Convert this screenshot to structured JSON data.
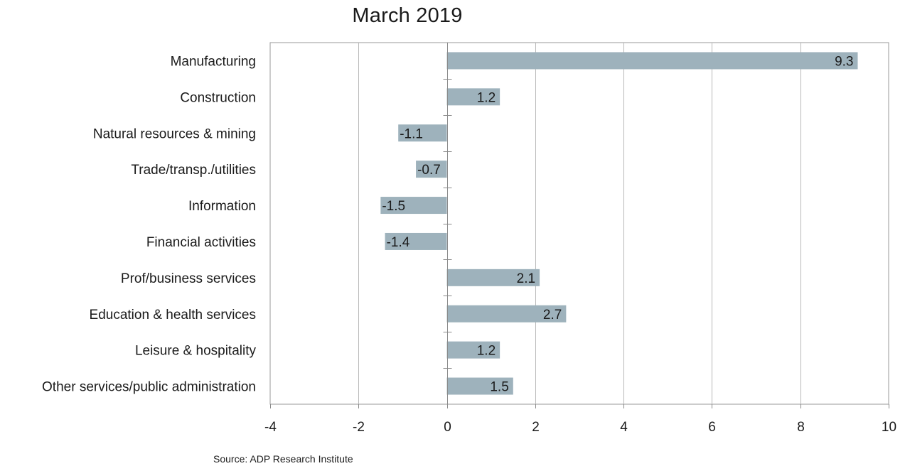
{
  "chart_data": {
    "type": "bar",
    "orientation": "horizontal",
    "title": "March 2019",
    "categories": [
      "Manufacturing",
      "Construction",
      "Natural resources & mining",
      "Trade/transp./utilities",
      "Information",
      "Financial activities",
      "Prof/business services",
      "Education & health services",
      "Leisure & hospitality",
      "Other services/public administration"
    ],
    "values": [
      9.3,
      1.2,
      -1.1,
      -0.7,
      -1.5,
      -1.4,
      2.1,
      2.7,
      1.2,
      1.5
    ],
    "value_labels": [
      "9.3",
      "1.2",
      "-1.1",
      "-0.7",
      "-1.5",
      "-1.4",
      "2.1",
      "2.7",
      "1.2",
      "1.5"
    ],
    "xlim": [
      -4,
      10
    ],
    "x_ticks": [
      -4,
      -2,
      0,
      2,
      4,
      6,
      8,
      10
    ],
    "x_tick_labels": [
      "-4",
      "-2",
      "0",
      "2",
      "4",
      "6",
      "8",
      "10"
    ],
    "xlabel": "",
    "ylabel": "",
    "grid": true,
    "legend": "none",
    "bar_color": "#9eb2bc",
    "grid_color": "#b8b8b8"
  },
  "footer": {
    "source": "Source: ADP Research Institute"
  }
}
